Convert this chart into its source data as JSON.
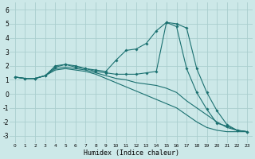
{
  "xlabel": "Humidex (Indice chaleur)",
  "background_color": "#cce8e8",
  "grid_color": "#aacece",
  "line_color": "#1a7070",
  "xlim": [
    -0.5,
    23.5
  ],
  "ylim": [
    -3.5,
    6.5
  ],
  "xticks": [
    0,
    1,
    2,
    3,
    4,
    5,
    6,
    7,
    8,
    9,
    10,
    11,
    12,
    13,
    14,
    15,
    16,
    17,
    18,
    19,
    20,
    21,
    22,
    23
  ],
  "yticks": [
    -3,
    -2,
    -1,
    0,
    1,
    2,
    3,
    4,
    5,
    6
  ],
  "lines": [
    {
      "x": [
        0,
        1,
        2,
        3,
        4,
        5,
        6,
        7,
        8,
        9,
        10,
        11,
        12,
        13,
        14,
        15,
        16,
        17,
        18,
        19,
        20,
        21,
        22,
        23
      ],
      "y": [
        1.2,
        1.1,
        1.1,
        1.3,
        1.9,
        2.1,
        2.0,
        1.8,
        1.7,
        1.6,
        2.4,
        3.1,
        3.2,
        3.6,
        4.5,
        5.1,
        5.0,
        4.7,
        1.8,
        0.1,
        -1.2,
        -2.2,
        -2.6,
        -2.7
      ],
      "marker": true
    },
    {
      "x": [
        0,
        1,
        2,
        3,
        4,
        5,
        6,
        7,
        8,
        9,
        10,
        11,
        12,
        13,
        14,
        15,
        16,
        17,
        18,
        19,
        20,
        21,
        22,
        23
      ],
      "y": [
        1.2,
        1.1,
        1.1,
        1.3,
        2.0,
        2.1,
        1.9,
        1.8,
        1.6,
        1.5,
        1.4,
        1.4,
        1.4,
        1.5,
        1.6,
        5.1,
        4.8,
        1.8,
        0.1,
        -1.1,
        -2.1,
        -2.3,
        -2.6,
        -2.7
      ],
      "marker": true
    },
    {
      "x": [
        0,
        1,
        2,
        3,
        4,
        5,
        6,
        7,
        8,
        9,
        10,
        11,
        12,
        13,
        14,
        15,
        16,
        17,
        18,
        19,
        20,
        21,
        22,
        23
      ],
      "y": [
        1.2,
        1.1,
        1.1,
        1.3,
        1.8,
        1.9,
        1.8,
        1.7,
        1.5,
        1.3,
        1.1,
        1.0,
        0.8,
        0.7,
        0.6,
        0.4,
        0.1,
        -0.5,
        -1.0,
        -1.5,
        -2.0,
        -2.4,
        -2.6,
        -2.7
      ],
      "marker": false
    },
    {
      "x": [
        0,
        1,
        2,
        3,
        4,
        5,
        6,
        7,
        8,
        9,
        10,
        11,
        12,
        13,
        14,
        15,
        16,
        17,
        18,
        19,
        20,
        21,
        22,
        23
      ],
      "y": [
        1.2,
        1.1,
        1.1,
        1.3,
        1.7,
        1.8,
        1.7,
        1.6,
        1.4,
        1.1,
        0.8,
        0.5,
        0.2,
        -0.1,
        -0.4,
        -0.7,
        -1.0,
        -1.5,
        -2.0,
        -2.4,
        -2.6,
        -2.7,
        -2.7,
        -2.7
      ],
      "marker": false
    }
  ]
}
